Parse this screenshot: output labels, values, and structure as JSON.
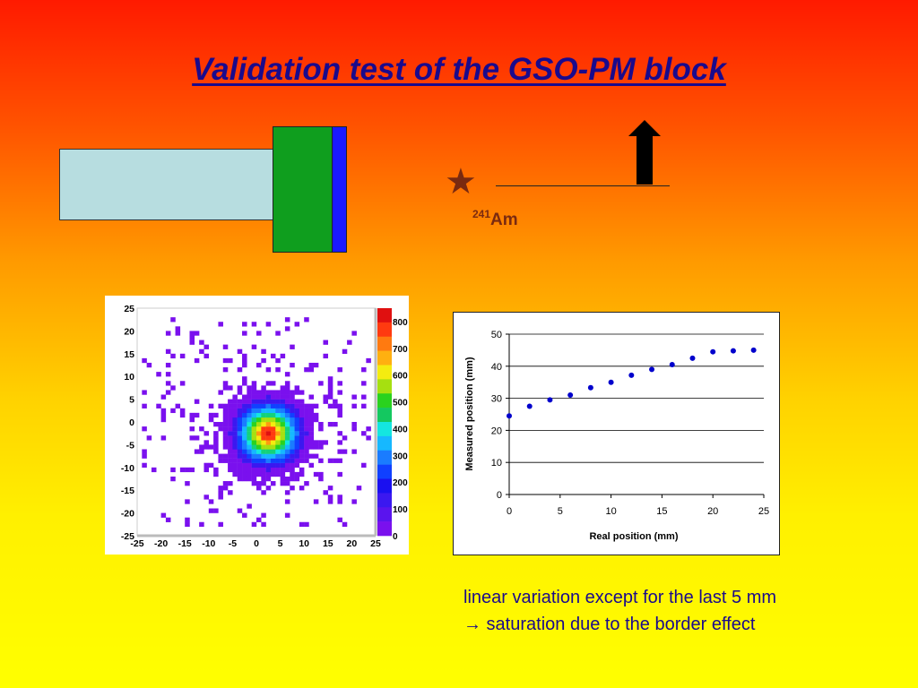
{
  "slide": {
    "title": "Validation test of the GSO-PM block",
    "source_label": {
      "mass": "241",
      "element": "Am"
    },
    "caption_line1": "linear variation except for the last 5 mm",
    "caption_line2": "→ saturation due to the border effect",
    "colors": {
      "pm_tube": "#b7dde0",
      "crystal": "#0f9e1e",
      "window": "#1a1aff",
      "star": "#7a2a10",
      "title": "#1a0a8c"
    }
  },
  "chart_data": [
    {
      "type": "heatmap",
      "title": "",
      "x_ticks": [
        "-25",
        "-20",
        "-15",
        "-10",
        "-5",
        "0",
        "5",
        "10",
        "15",
        "20",
        "25"
      ],
      "y_ticks": [
        "25",
        "20",
        "15",
        "10",
        "5",
        "0",
        "-5",
        "-10",
        "-15",
        "-20",
        "-25"
      ],
      "xlim": [
        -25,
        25
      ],
      "ylim": [
        -25,
        25
      ],
      "colorbar_ticks": [
        "800",
        "700",
        "600",
        "500",
        "400",
        "300",
        "200",
        "100",
        "0"
      ],
      "colorbar_range": [
        0,
        850
      ],
      "peak_center": [
        2.5,
        -2.5
      ]
    },
    {
      "type": "scatter",
      "title": "",
      "xlabel": "Real position (mm)",
      "ylabel": "Measured position (mm)",
      "xlim": [
        0,
        25
      ],
      "ylim": [
        0,
        50
      ],
      "x_ticks": [
        "0",
        "5",
        "10",
        "15",
        "20",
        "25"
      ],
      "y_ticks": [
        "0",
        "10",
        "20",
        "30",
        "40",
        "50"
      ],
      "grid": true,
      "series": [
        {
          "color": "#0000cc",
          "x": [
            0,
            2,
            4,
            6,
            8,
            10,
            12,
            14,
            16,
            18,
            20,
            22,
            24
          ],
          "y": [
            24.5,
            27.5,
            29.5,
            31,
            33.3,
            35,
            37.2,
            39,
            40.5,
            42.5,
            44.5,
            44.8,
            45
          ]
        }
      ]
    }
  ]
}
